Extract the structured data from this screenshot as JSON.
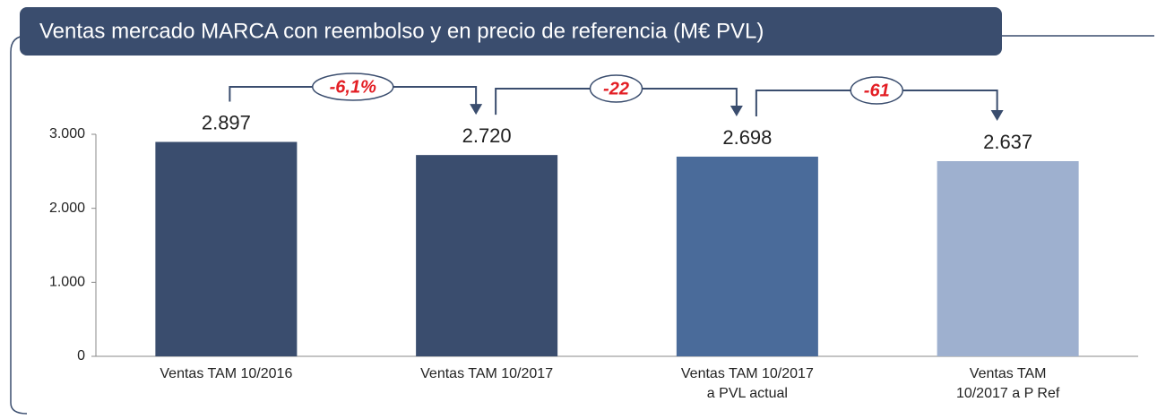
{
  "chart_data": {
    "type": "bar",
    "title": "Ventas mercado MARCA con reembolso y en precio de referencia (M€ PVL)",
    "categories": [
      [
        "Ventas TAM 10/2016"
      ],
      [
        "Ventas TAM 10/2017"
      ],
      [
        "Ventas TAM 10/2017",
        "a PVL actual"
      ],
      [
        "Ventas TAM",
        "10/2017 a P Ref"
      ]
    ],
    "values": [
      2897,
      2720,
      2698,
      2637
    ],
    "value_labels": [
      "2.897",
      "2.720",
      "2.698",
      "2.637"
    ],
    "colors": [
      "#3a4d6e",
      "#3a4d6e",
      "#4a6b9a",
      "#9eb0cf"
    ],
    "annotations": [
      "-6,1%",
      "-22",
      "-61"
    ],
    "ylim": [
      0,
      3000
    ],
    "yticks": [
      0,
      {
        "value": 1000,
        "label": "1.000"
      },
      {
        "value": 2000,
        "label": "2.000"
      },
      {
        "value": 3000,
        "label": "3.000"
      }
    ],
    "grid": false
  }
}
